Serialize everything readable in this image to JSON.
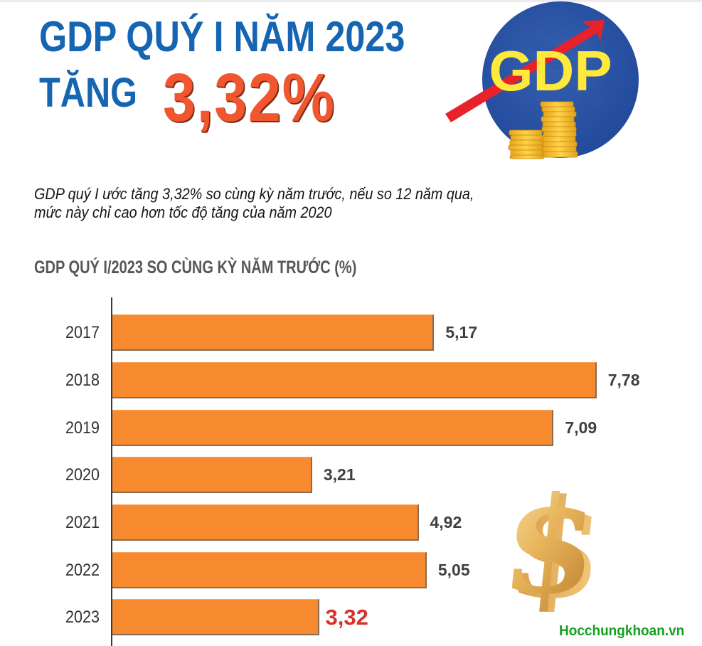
{
  "header": {
    "title_line1": "GDP QUÝ I NĂM 2023",
    "title_line2_label": "TĂNG",
    "title_line2_value": "3,32%",
    "logo_text": "GDP"
  },
  "subtitle": {
    "line1": "GDP quý I ước tăng 3,32% so cùng kỳ năm trước, nếu so 12 năm qua,",
    "line2": "mức này chỉ cao hơn tốc độ tăng của năm 2020"
  },
  "colors": {
    "title_blue": "#1565b2",
    "headline_orange": "#f2562e",
    "bar_orange": "#f78a2f",
    "highlight_red": "#d8312c",
    "logo_circle_blue": "#2a50a0",
    "logo_text_yellow": "#ffe93a",
    "watermark_green": "#15a022"
  },
  "watermark": "Hocchungkhoan.vn",
  "icons": {
    "logo": "gdp-globe-arrow-coins-icon",
    "decoration": "gold-dollar-sign-icon"
  },
  "chart_data": {
    "type": "bar",
    "orientation": "horizontal",
    "title": "GDP QUÝ I/2023 SO CÙNG KỲ NĂM TRƯỚC (%)",
    "xlabel": "",
    "ylabel": "",
    "categories": [
      "2017",
      "2018",
      "2019",
      "2020",
      "2021",
      "2022",
      "2023"
    ],
    "values": [
      5.17,
      7.78,
      7.09,
      3.21,
      4.92,
      5.05,
      3.32
    ],
    "value_labels": [
      "5,17",
      "7,78",
      "7,09",
      "3,21",
      "4,92",
      "5,05",
      "3,32"
    ],
    "highlight_index": 6,
    "grid": false,
    "legend": null,
    "xlim": [
      0,
      8
    ]
  }
}
